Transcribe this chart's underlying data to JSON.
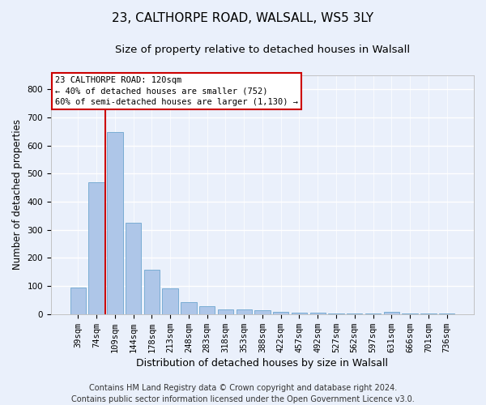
{
  "title_line1": "23, CALTHORPE ROAD, WALSALL, WS5 3LY",
  "title_line2": "Size of property relative to detached houses in Walsall",
  "xlabel": "Distribution of detached houses by size in Walsall",
  "ylabel": "Number of detached properties",
  "footer_line1": "Contains HM Land Registry data © Crown copyright and database right 2024.",
  "footer_line2": "Contains public sector information licensed under the Open Government Licence v3.0.",
  "bar_labels": [
    "39sqm",
    "74sqm",
    "109sqm",
    "144sqm",
    "178sqm",
    "213sqm",
    "248sqm",
    "283sqm",
    "318sqm",
    "353sqm",
    "388sqm",
    "422sqm",
    "457sqm",
    "492sqm",
    "527sqm",
    "562sqm",
    "597sqm",
    "631sqm",
    "666sqm",
    "701sqm",
    "736sqm"
  ],
  "bar_values": [
    95,
    470,
    648,
    325,
    158,
    93,
    43,
    27,
    18,
    17,
    13,
    8,
    5,
    5,
    1,
    1,
    1,
    8,
    1,
    1,
    1
  ],
  "bar_color": "#aec6e8",
  "bar_edgecolor": "#7aadd4",
  "red_line_x": 1.5,
  "annotation_line1": "23 CALTHORPE ROAD: 120sqm",
  "annotation_line2": "← 40% of detached houses are smaller (752)",
  "annotation_line3": "60% of semi-detached houses are larger (1,130) →",
  "annotation_box_color": "#ffffff",
  "annotation_box_edgecolor": "#cc0000",
  "ylim": [
    0,
    850
  ],
  "yticks": [
    0,
    100,
    200,
    300,
    400,
    500,
    600,
    700,
    800
  ],
  "background_color": "#eaf0fb",
  "plot_background": "#eaf0fb",
  "grid_color": "#ffffff",
  "title1_fontsize": 11,
  "title2_fontsize": 9.5,
  "xlabel_fontsize": 9,
  "ylabel_fontsize": 8.5,
  "tick_fontsize": 7.5,
  "footer_fontsize": 7
}
